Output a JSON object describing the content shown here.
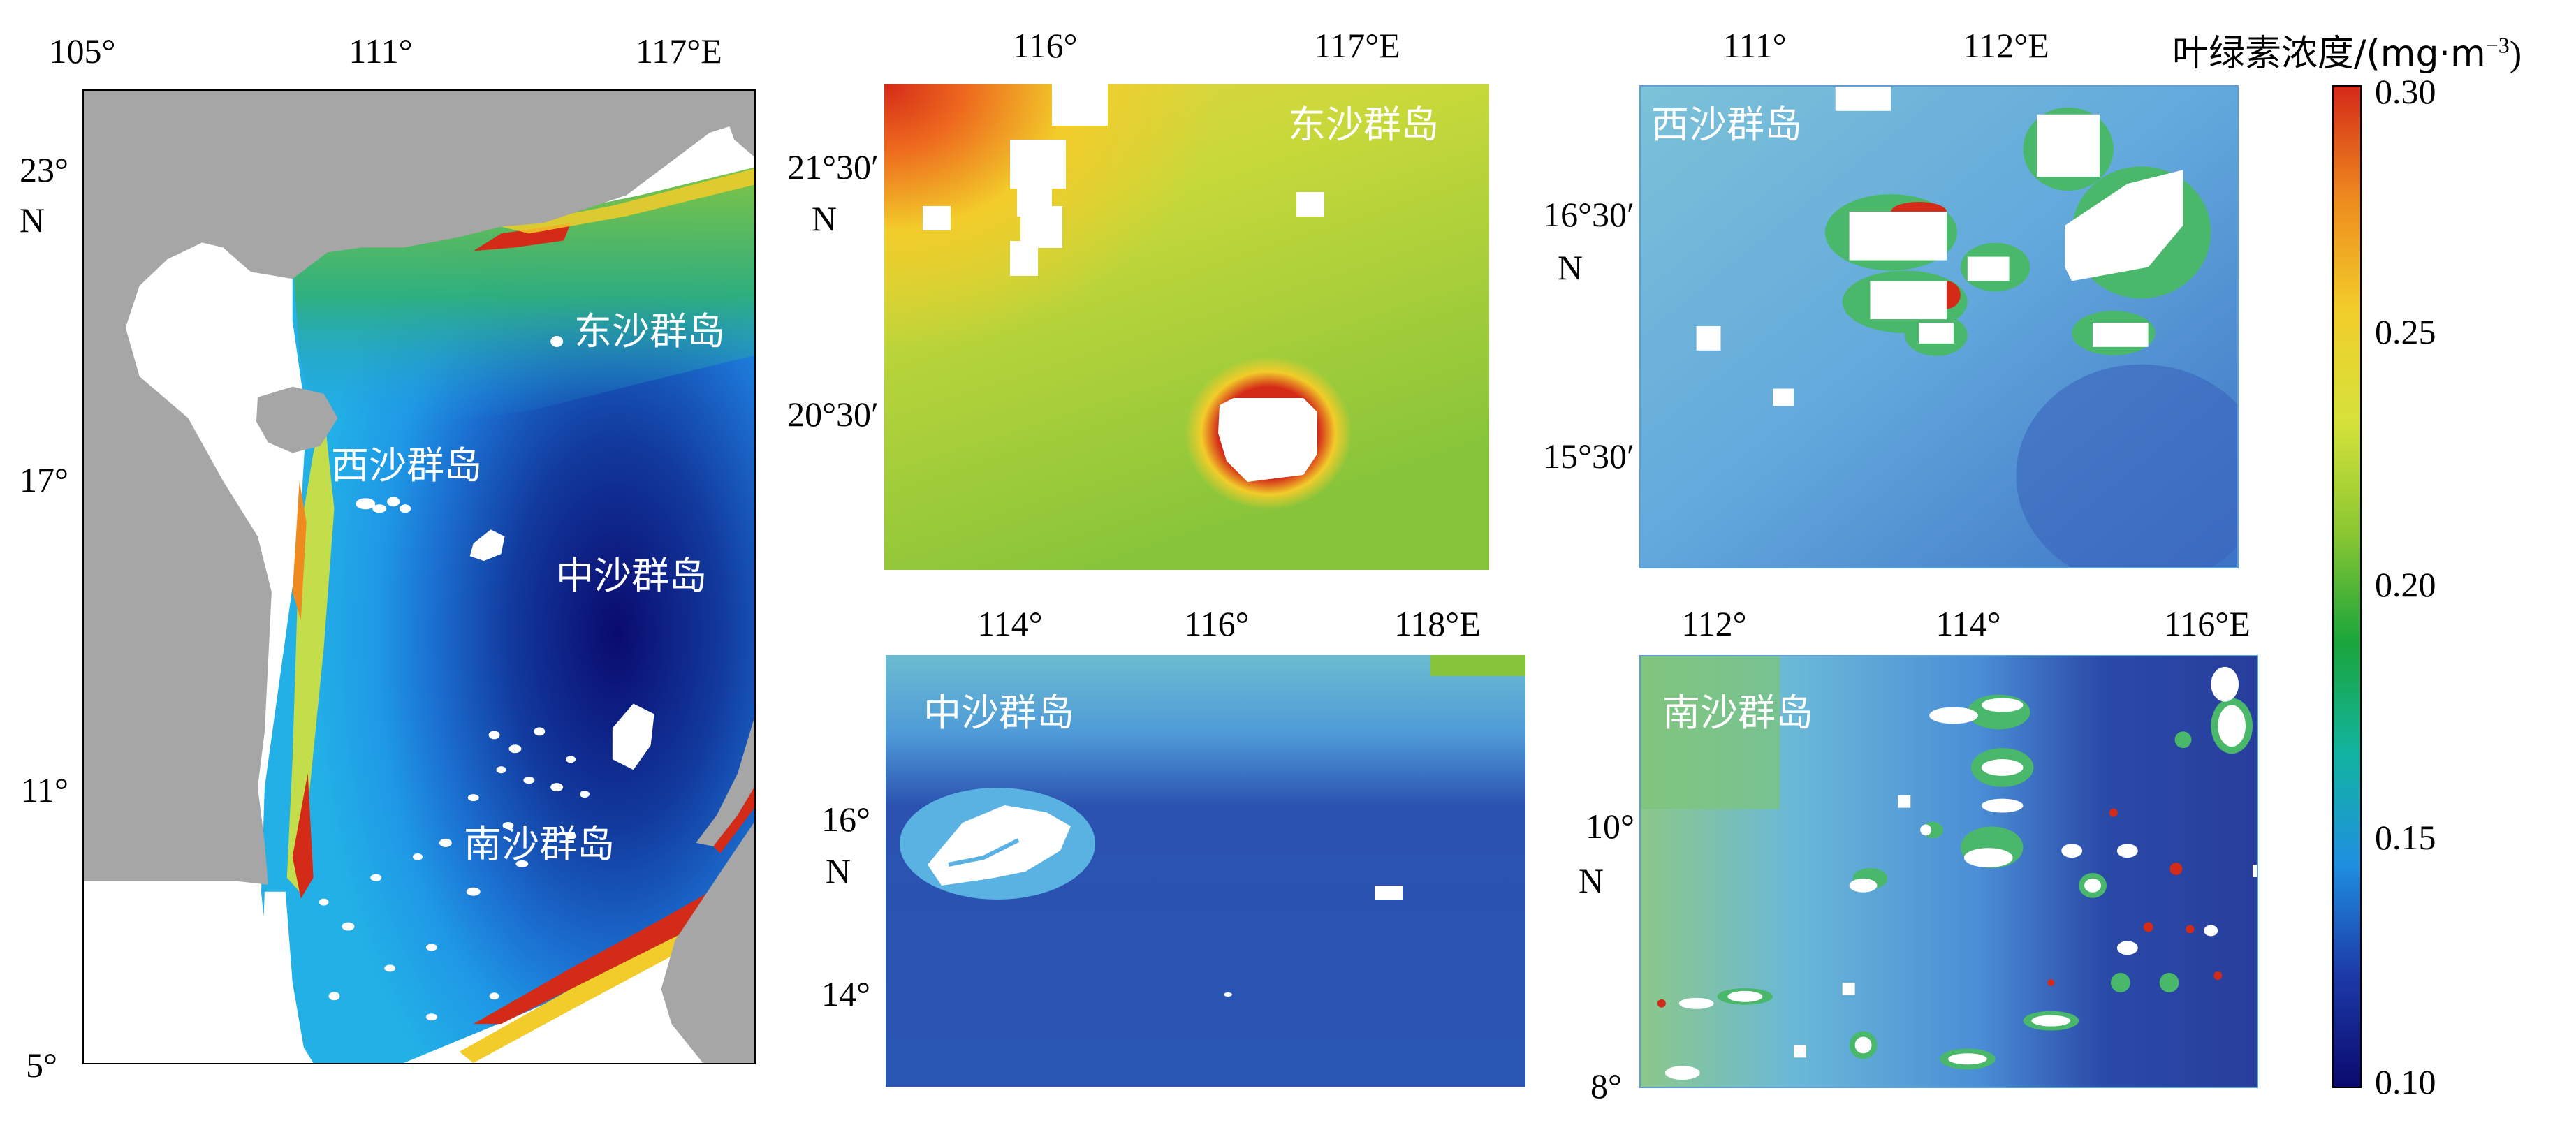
{
  "figure": {
    "colorbar": {
      "title_prefix": "叶绿素浓度/(mg·m",
      "title_sup": "−3",
      "title_suffix": ")",
      "ticks": [
        "0.30",
        "0.25",
        "0.20",
        "0.15",
        "0.10"
      ],
      "min": 0.1,
      "max": 0.3,
      "colors": [
        "#0a0a6e",
        "#1c3aa8",
        "#1f8fe0",
        "#12b4a0",
        "#1aa53a",
        "#8cc832",
        "#d6e23a",
        "#f2cc2a",
        "#ee8a1e",
        "#d42a18"
      ]
    },
    "panels": [
      {
        "id": "overview",
        "x_ticks": [
          "105°",
          "111°",
          "117°E"
        ],
        "y_ticks": [
          "23°",
          "N",
          "17°",
          "11°",
          "5°"
        ],
        "labels": [
          "东沙群岛",
          "西沙群岛",
          "中沙群岛",
          "南沙群岛"
        ],
        "colors": {
          "land": "#a6a6a6",
          "coast": "#ffffff"
        }
      },
      {
        "id": "dongsha",
        "x_ticks": [
          "116°",
          "117°E"
        ],
        "y_ticks": [
          "21°30′",
          "N",
          "20°30′"
        ],
        "label": "东沙群岛",
        "base_color": "#bcd434"
      },
      {
        "id": "xisha",
        "x_ticks": [
          "111°",
          "112°E"
        ],
        "y_ticks": [
          "16°30′",
          "N",
          "15°30′"
        ],
        "label": "西沙群岛",
        "base_color": "#6ab2de"
      },
      {
        "id": "zhongsha",
        "x_ticks": [
          "114°",
          "116°",
          "118°E"
        ],
        "y_ticks": [
          "16°",
          "N",
          "14°"
        ],
        "label": "中沙群岛",
        "base_color": "#2a54b4"
      },
      {
        "id": "nansha",
        "x_ticks": [
          "112°",
          "114°",
          "116°E"
        ],
        "y_ticks": [
          "10°",
          "N",
          "8°"
        ],
        "label": "南沙群岛",
        "base_color": "#5aa4da"
      }
    ]
  }
}
